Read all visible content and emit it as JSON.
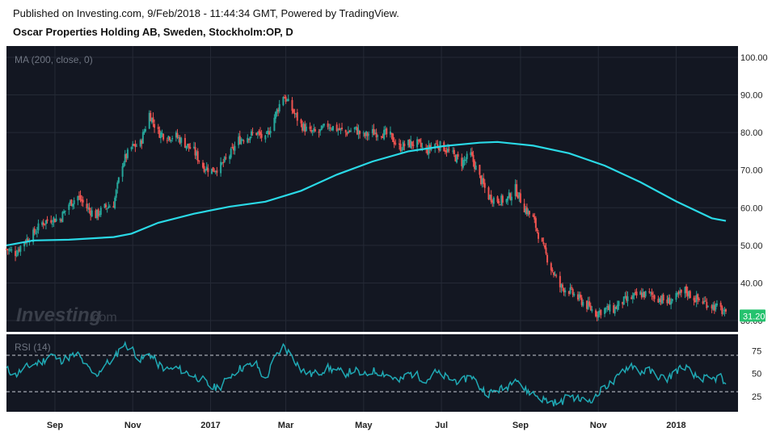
{
  "header": {
    "published": "Published on Investing.com, 9/Feb/2018 - 11:44:34 GMT, Powered by TradingView.",
    "title": "Oscar Properties Holding AB, Sweden, Stockholm:OP, D"
  },
  "watermark": "Investing",
  "watermark_suffix": ".com",
  "colors": {
    "background": "#131722",
    "up": "#26a69a",
    "down": "#ef5350",
    "ma": "#2ad9e6",
    "rsi": "#1fa9b4",
    "grid": "#252a36",
    "label_bg": "#25c26e"
  },
  "chart_data": [
    {
      "type": "candlestick",
      "title": "Oscar Properties Holding AB, Sweden, Stockholm:OP, D",
      "indicator_label": "MA (200, close, 0)",
      "ylim": [
        27,
        103
      ],
      "y_ticks": [
        "30.00",
        "40.00",
        "50.00",
        "60.00",
        "70.00",
        "80.00",
        "90.00",
        "100.00"
      ],
      "last_price_label": "31.20",
      "last_price": 31.2,
      "close_path": [
        [
          "2016-07-25",
          49
        ],
        [
          "2016-08-01",
          48
        ],
        [
          "2016-08-08",
          51
        ],
        [
          "2016-08-15",
          53
        ],
        [
          "2016-08-22",
          56
        ],
        [
          "2016-08-29",
          57
        ],
        [
          "2016-09-05",
          57
        ],
        [
          "2016-09-12",
          61
        ],
        [
          "2016-09-19",
          63
        ],
        [
          "2016-09-26",
          60
        ],
        [
          "2016-10-03",
          58
        ],
        [
          "2016-10-10",
          60
        ],
        [
          "2016-10-17",
          61
        ],
        [
          "2016-10-24",
          72
        ],
        [
          "2016-10-31",
          76
        ],
        [
          "2016-11-07",
          77
        ],
        [
          "2016-11-14",
          85
        ],
        [
          "2016-11-21",
          80
        ],
        [
          "2016-11-28",
          79
        ],
        [
          "2016-12-05",
          79
        ],
        [
          "2016-12-12",
          77
        ],
        [
          "2016-12-19",
          75
        ],
        [
          "2016-12-26",
          71
        ],
        [
          "2017-01-02",
          70
        ],
        [
          "2017-01-09",
          71
        ],
        [
          "2017-01-16",
          74
        ],
        [
          "2017-01-23",
          78
        ],
        [
          "2017-01-30",
          79
        ],
        [
          "2017-02-06",
          80
        ],
        [
          "2017-02-13",
          78
        ],
        [
          "2017-02-20",
          84
        ],
        [
          "2017-02-27",
          90
        ],
        [
          "2017-03-06",
          86
        ],
        [
          "2017-03-13",
          82
        ],
        [
          "2017-03-20",
          80
        ],
        [
          "2017-03-27",
          80
        ],
        [
          "2017-04-03",
          82
        ],
        [
          "2017-04-10",
          81
        ],
        [
          "2017-04-17",
          80
        ],
        [
          "2017-04-24",
          81
        ],
        [
          "2017-05-01",
          79
        ],
        [
          "2017-05-08",
          80
        ],
        [
          "2017-05-15",
          80
        ],
        [
          "2017-05-22",
          79
        ],
        [
          "2017-05-29",
          76
        ],
        [
          "2017-06-05",
          77
        ],
        [
          "2017-06-12",
          77
        ],
        [
          "2017-06-19",
          75
        ],
        [
          "2017-06-26",
          77
        ],
        [
          "2017-07-03",
          76
        ],
        [
          "2017-07-10",
          74
        ],
        [
          "2017-07-17",
          72
        ],
        [
          "2017-07-24",
          74
        ],
        [
          "2017-07-31",
          68
        ],
        [
          "2017-08-07",
          63
        ],
        [
          "2017-08-14",
          62
        ],
        [
          "2017-08-21",
          62
        ],
        [
          "2017-08-28",
          65
        ],
        [
          "2017-09-04",
          60
        ],
        [
          "2017-09-11",
          57
        ],
        [
          "2017-09-18",
          50
        ],
        [
          "2017-09-25",
          44
        ],
        [
          "2017-10-02",
          39
        ],
        [
          "2017-10-09",
          38
        ],
        [
          "2017-10-16",
          36
        ],
        [
          "2017-10-23",
          34
        ],
        [
          "2017-10-30",
          32
        ],
        [
          "2017-11-06",
          33
        ],
        [
          "2017-11-13",
          33
        ],
        [
          "2017-11-20",
          35
        ],
        [
          "2017-11-27",
          36
        ],
        [
          "2017-12-04",
          37
        ],
        [
          "2017-12-11",
          37
        ],
        [
          "2017-12-18",
          36
        ],
        [
          "2017-12-25",
          35
        ],
        [
          "2018-01-01",
          36
        ],
        [
          "2018-01-08",
          38
        ],
        [
          "2018-01-15",
          36
        ],
        [
          "2018-01-22",
          35
        ],
        [
          "2018-01-29",
          34
        ],
        [
          "2018-02-05",
          33
        ],
        [
          "2018-02-09",
          31.2
        ]
      ],
      "ma_200": [
        [
          "2016-07-25",
          50
        ],
        [
          "2016-08-15",
          51.3
        ],
        [
          "2016-09-12",
          51.5
        ],
        [
          "2016-10-17",
          52.2
        ],
        [
          "2016-10-31",
          53.1
        ],
        [
          "2016-11-21",
          56
        ],
        [
          "2016-12-19",
          58.4
        ],
        [
          "2017-01-16",
          60.3
        ],
        [
          "2017-02-13",
          61.6
        ],
        [
          "2017-03-13",
          64.5
        ],
        [
          "2017-04-10",
          68.8
        ],
        [
          "2017-05-08",
          72.3
        ],
        [
          "2017-06-05",
          75
        ],
        [
          "2017-07-03",
          76.4
        ],
        [
          "2017-07-31",
          77.3
        ],
        [
          "2017-08-14",
          77.5
        ],
        [
          "2017-09-11",
          76.5
        ],
        [
          "2017-10-09",
          74.5
        ],
        [
          "2017-11-06",
          71.2
        ],
        [
          "2017-12-04",
          66.8
        ],
        [
          "2018-01-01",
          61.7
        ],
        [
          "2018-01-29",
          57.2
        ],
        [
          "2018-02-09",
          56.5
        ]
      ],
      "x_ticks": [
        "Sep",
        "Nov",
        "2017",
        "Mar",
        "May",
        "Jul",
        "Sep",
        "Nov",
        "2018"
      ]
    },
    {
      "type": "line",
      "indicator_label": "RSI (14)",
      "ylim": [
        8,
        93
      ],
      "y_ticks": [
        "25",
        "50",
        "75"
      ],
      "bands": [
        30,
        70
      ],
      "rsi_path": [
        [
          "2016-07-25",
          55
        ],
        [
          "2016-08-01",
          48
        ],
        [
          "2016-08-08",
          56
        ],
        [
          "2016-08-15",
          60
        ],
        [
          "2016-08-22",
          63
        ],
        [
          "2016-08-29",
          71
        ],
        [
          "2016-09-05",
          64
        ],
        [
          "2016-09-12",
          68
        ],
        [
          "2016-09-19",
          71
        ],
        [
          "2016-09-26",
          57
        ],
        [
          "2016-10-03",
          47
        ],
        [
          "2016-10-10",
          60
        ],
        [
          "2016-10-17",
          65
        ],
        [
          "2016-10-24",
          82
        ],
        [
          "2016-10-31",
          78
        ],
        [
          "2016-11-07",
          64
        ],
        [
          "2016-11-14",
          72
        ],
        [
          "2016-11-21",
          60
        ],
        [
          "2016-11-28",
          54
        ],
        [
          "2016-12-05",
          56
        ],
        [
          "2016-12-12",
          52
        ],
        [
          "2016-12-19",
          47
        ],
        [
          "2016-12-26",
          43
        ],
        [
          "2017-01-02",
          34
        ],
        [
          "2017-01-09",
          36
        ],
        [
          "2017-01-16",
          47
        ],
        [
          "2017-01-23",
          55
        ],
        [
          "2017-01-30",
          58
        ],
        [
          "2017-02-06",
          60
        ],
        [
          "2017-02-13",
          42
        ],
        [
          "2017-02-20",
          66
        ],
        [
          "2017-02-27",
          80
        ],
        [
          "2017-03-06",
          69
        ],
        [
          "2017-03-13",
          54
        ],
        [
          "2017-03-20",
          49
        ],
        [
          "2017-03-27",
          51
        ],
        [
          "2017-04-03",
          56
        ],
        [
          "2017-04-10",
          53
        ],
        [
          "2017-04-17",
          50
        ],
        [
          "2017-04-24",
          54
        ],
        [
          "2017-05-01",
          47
        ],
        [
          "2017-05-08",
          53
        ],
        [
          "2017-05-15",
          51
        ],
        [
          "2017-05-22",
          47
        ],
        [
          "2017-05-29",
          41
        ],
        [
          "2017-06-05",
          50
        ],
        [
          "2017-06-12",
          48
        ],
        [
          "2017-06-19",
          42
        ],
        [
          "2017-06-26",
          51
        ],
        [
          "2017-07-03",
          47
        ],
        [
          "2017-07-10",
          43
        ],
        [
          "2017-07-17",
          41
        ],
        [
          "2017-07-24",
          49
        ],
        [
          "2017-07-31",
          35
        ],
        [
          "2017-08-07",
          28
        ],
        [
          "2017-08-14",
          32
        ],
        [
          "2017-08-21",
          34
        ],
        [
          "2017-08-28",
          48
        ],
        [
          "2017-09-04",
          32
        ],
        [
          "2017-09-11",
          28
        ],
        [
          "2017-09-18",
          22
        ],
        [
          "2017-09-25",
          19
        ],
        [
          "2017-10-02",
          17
        ],
        [
          "2017-10-09",
          27
        ],
        [
          "2017-10-16",
          22
        ],
        [
          "2017-10-23",
          20
        ],
        [
          "2017-10-30",
          24
        ],
        [
          "2017-11-06",
          36
        ],
        [
          "2017-11-13",
          40
        ],
        [
          "2017-11-20",
          53
        ],
        [
          "2017-11-27",
          60
        ],
        [
          "2017-12-04",
          52
        ],
        [
          "2017-12-11",
          53
        ],
        [
          "2017-12-18",
          47
        ],
        [
          "2017-12-25",
          44
        ],
        [
          "2018-01-01",
          53
        ],
        [
          "2018-01-08",
          58
        ],
        [
          "2018-01-15",
          47
        ],
        [
          "2018-01-22",
          45
        ],
        [
          "2018-01-29",
          43
        ],
        [
          "2018-02-05",
          47
        ],
        [
          "2018-02-09",
          34
        ]
      ]
    }
  ]
}
